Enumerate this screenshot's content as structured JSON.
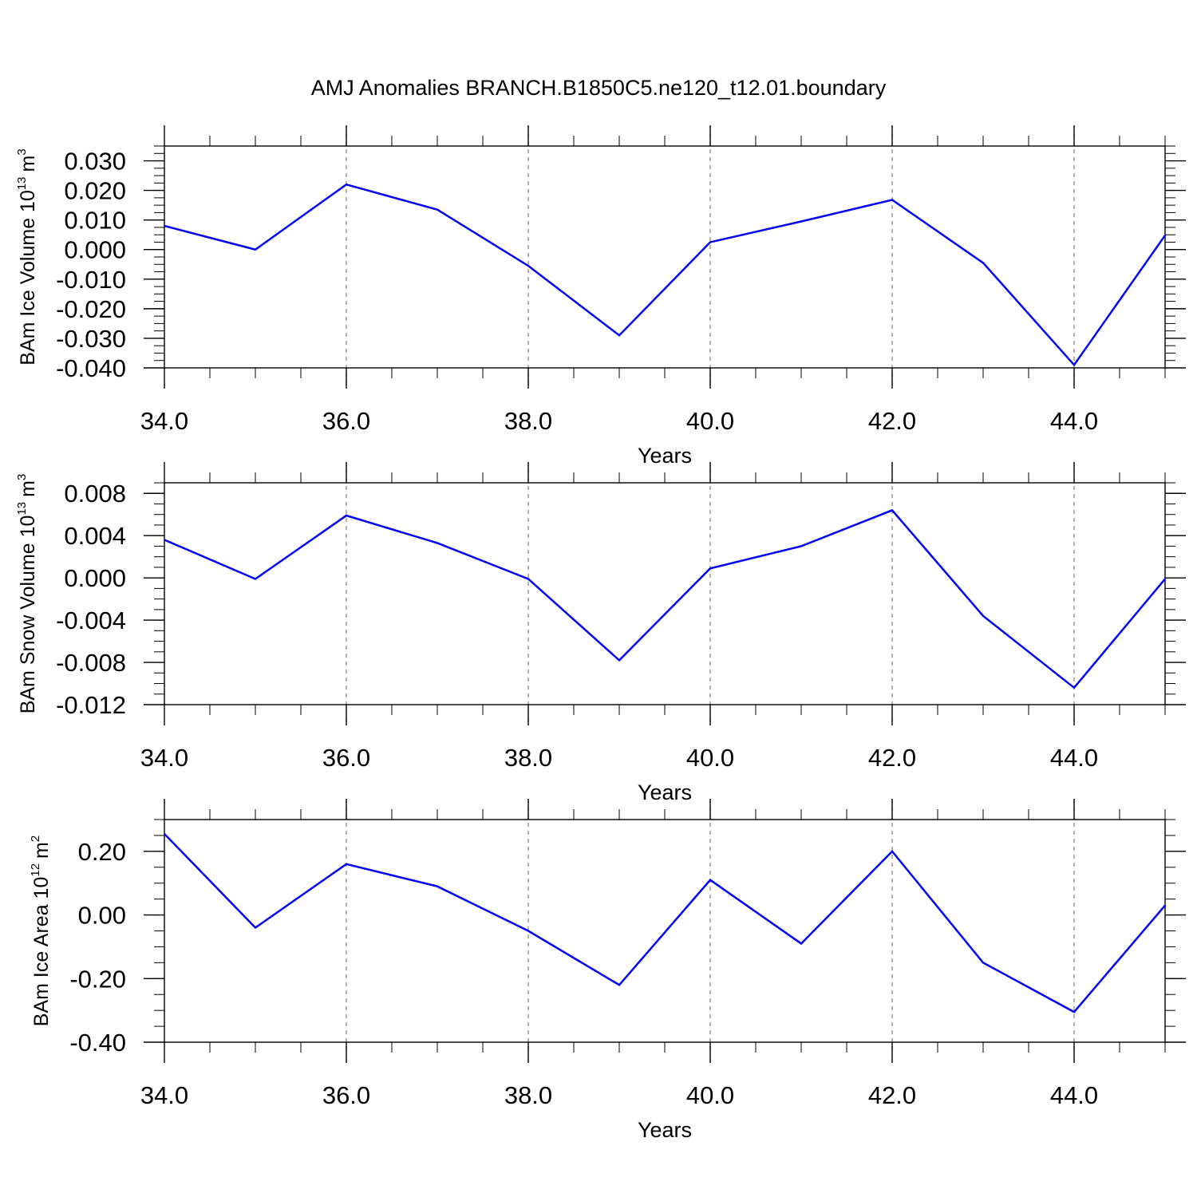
{
  "figure_title": "AMJ Anomalies BRANCH.B1850C5.ne120_t12.01.boundary",
  "colors": {
    "series": "#0000ff",
    "axis": "#000000",
    "gridline": "#7f7f7f"
  },
  "chart_data": [
    {
      "type": "line",
      "title": "AMJ Anomalies BRANCH.B1850C5.ne120_t12.01.boundary",
      "xlabel": "Years",
      "ylabel": {
        "text": "BAm Ice Volume 10",
        "exponent": "13",
        "unit": "m",
        "unit_exponent": "3"
      },
      "xlim": [
        34,
        45
      ],
      "ylim": [
        -0.04,
        0.035
      ],
      "x_ticks": [
        "34.0",
        "36.0",
        "38.0",
        "40.0",
        "42.0",
        "44.0"
      ],
      "y_ticks": [
        "0.030",
        "0.020",
        "0.010",
        "0.000",
        "-0.010",
        "-0.020",
        "-0.030",
        "-0.040"
      ],
      "x_gridlines": [
        36,
        38,
        40,
        42,
        44
      ],
      "x": [
        34,
        35,
        36,
        37,
        38,
        39,
        40,
        41,
        42,
        43,
        44,
        45
      ],
      "series": [
        {
          "values": [
            0.008,
            0.0,
            0.022,
            0.0135,
            -0.0055,
            -0.029,
            0.0025,
            0.0095,
            0.0168,
            -0.0045,
            -0.039,
            0.0048
          ]
        }
      ]
    },
    {
      "type": "line",
      "xlabel": "Years",
      "ylabel": {
        "text": "BAm Snow Volume 10",
        "exponent": "13",
        "unit": "m",
        "unit_exponent": "3"
      },
      "xlim": [
        34,
        45
      ],
      "ylim": [
        -0.012,
        0.009
      ],
      "x_ticks": [
        "34.0",
        "36.0",
        "38.0",
        "40.0",
        "42.0",
        "44.0"
      ],
      "y_ticks": [
        "0.008",
        "0.004",
        "0.000",
        "-0.004",
        "-0.008",
        "-0.012"
      ],
      "x_gridlines": [
        36,
        38,
        40,
        42,
        44
      ],
      "x": [
        34,
        35,
        36,
        37,
        38,
        39,
        40,
        41,
        42,
        43,
        44,
        45
      ],
      "series": [
        {
          "values": [
            0.0036,
            -0.0001,
            0.0059,
            0.0033,
            -0.0001,
            -0.0078,
            0.0009,
            0.003,
            0.0064,
            -0.0036,
            -0.0104,
            -0.0001
          ]
        }
      ]
    },
    {
      "type": "line",
      "xlabel": "Years",
      "ylabel": {
        "text": "BAm Ice Area 10",
        "exponent": "12",
        "unit": "m",
        "unit_exponent": "2"
      },
      "xlim": [
        34,
        45
      ],
      "ylim": [
        -0.4,
        0.3
      ],
      "x_ticks": [
        "34.0",
        "36.0",
        "38.0",
        "40.0",
        "42.0",
        "44.0"
      ],
      "y_ticks": [
        "0.20",
        "0.00",
        "-0.20",
        "-0.40"
      ],
      "x_gridlines": [
        36,
        38,
        40,
        42,
        44
      ],
      "x": [
        34,
        35,
        36,
        37,
        38,
        39,
        40,
        41,
        42,
        43,
        44,
        45
      ],
      "series": [
        {
          "values": [
            0.255,
            -0.04,
            0.16,
            0.09,
            -0.05,
            -0.22,
            0.11,
            -0.09,
            0.2,
            -0.15,
            -0.305,
            0.03
          ]
        }
      ]
    }
  ]
}
